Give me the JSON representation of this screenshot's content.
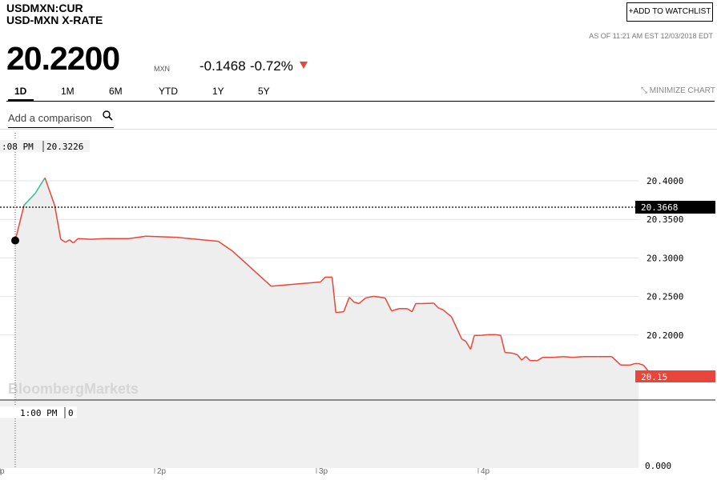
{
  "header": {
    "ticker": "USDMXN:CUR",
    "name": "USD-MXN X-RATE",
    "watchlist_button": "ADD TO WATCHLIST",
    "as_of": "AS OF 11:21 AM EST 12/03/2018 EDT",
    "price": "20.2200",
    "currency": "MXN",
    "change": "-0.1468",
    "change_pct": "-0.72%"
  },
  "tabs": [
    {
      "label": "1D",
      "active": true
    },
    {
      "label": "1M",
      "active": false
    },
    {
      "label": "6M",
      "active": false
    },
    {
      "label": "YTD",
      "active": false
    },
    {
      "label": "1Y",
      "active": false
    },
    {
      "label": "5Y",
      "active": false
    }
  ],
  "minimize_label": "MINIMIZE CHART",
  "comparison": {
    "placeholder": "Add a comparison"
  },
  "watermark": "BloombergMarkets",
  "colors": {
    "down": "#e8463b",
    "up": "#2ec197",
    "fill": "#eeeeee"
  },
  "chart_data": {
    "type": "line",
    "x_ticks": [
      "p",
      "2p",
      "3p",
      "4p"
    ],
    "y_ticks": [
      20.4,
      20.35,
      20.3,
      20.25,
      20.2
    ],
    "ylim": [
      20.15,
      20.4
    ],
    "grid": true,
    "crosshair": {
      "time": ":08 PM",
      "value": "20.3226"
    },
    "reference_label": "20.3668",
    "last_label": "20.15",
    "volume_label": {
      "time": "1:00 PM",
      "value": "0"
    },
    "volume_axis_label": "0.000",
    "series": [
      {
        "values": [
          20.3226,
          20.3683,
          20.3837,
          20.4039,
          20.368,
          20.3241,
          20.3204,
          20.3235,
          20.3194,
          20.3251,
          20.3246,
          20.3241,
          20.3251,
          20.3251,
          20.3282,
          20.3267,
          20.3215,
          20.3087,
          20.2633,
          20.2688,
          20.2751,
          20.2751,
          20.2292,
          20.2302,
          20.2491,
          20.2427,
          20.2408,
          20.2481,
          20.2502,
          20.2482,
          20.2312,
          20.2343,
          20.2342,
          20.2302,
          20.2408,
          20.2408,
          20.2413,
          20.2354,
          20.2327,
          20.2234,
          20.1949,
          20.1918,
          20.1815,
          20.1995,
          20.1995,
          20.2005,
          20.2005,
          20.1995,
          20.1774,
          20.1764,
          20.1743,
          20.1674,
          20.1723,
          20.1669,
          20.1669,
          20.171,
          20.171,
          20.172,
          20.171,
          20.172,
          20.172,
          20.172,
          20.1611,
          20.161,
          20.163,
          20.163,
          20.161,
          20.153
        ],
        "x": [
          0,
          0.019,
          0.043,
          0.064,
          0.085,
          0.098,
          0.108,
          0.117,
          0.125,
          0.135,
          0.15,
          0.163,
          0.193,
          0.245,
          0.281,
          0.347,
          0.437,
          0.468,
          0.551,
          0.657,
          0.667,
          0.682,
          0.69,
          0.707,
          0.719,
          0.729,
          0.74,
          0.754,
          0.771,
          0.796,
          0.81,
          0.826,
          0.844,
          0.854,
          0.862,
          0.873,
          0.901,
          0.91,
          0.921,
          0.939,
          0.961,
          0.97,
          0.98,
          0.988,
          1.003,
          1.016,
          1.035,
          1.045,
          1.054,
          1.071,
          1.081,
          1.09,
          1.099,
          1.108,
          1.124,
          1.135,
          1.159,
          1.179,
          1.2,
          1.222,
          1.254,
          1.284,
          1.303,
          1.323,
          1.334,
          1.341,
          1.352,
          1.363
        ],
        "up_segment_count": 4
      }
    ]
  }
}
